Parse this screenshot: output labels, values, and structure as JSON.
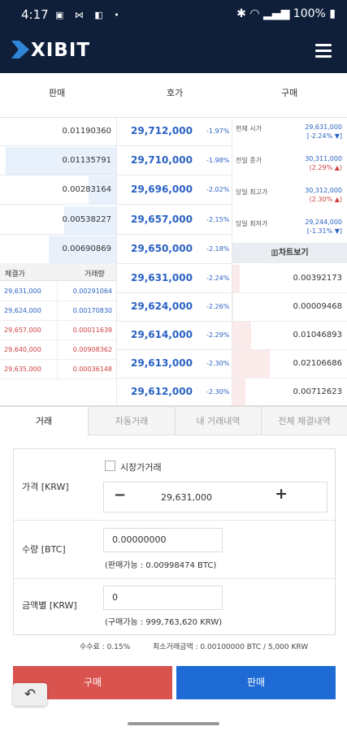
{
  "status_bar": {
    "time": "4:17",
    "battery": "100%"
  },
  "app": {
    "brand": "XIBIT"
  },
  "orderbook": {
    "headers": {
      "sell": "판매",
      "quote": "호가",
      "buy": "구매"
    },
    "asks": [
      {
        "qty": "0.01190360",
        "price": "29,712,000",
        "change": "-1.97%",
        "fill": 0.0
      },
      {
        "qty": "0.01135791",
        "price": "29,710,000",
        "change": "-1.98%",
        "fill": 0.95
      },
      {
        "qty": "0.00283164",
        "price": "29,696,000",
        "change": "-2.02%",
        "fill": 0.24
      },
      {
        "qty": "0.00538227",
        "price": "29,657,000",
        "change": "-2.15%",
        "fill": 0.45
      },
      {
        "qty": "0.00690869",
        "price": "29,650,000",
        "change": "-2.18%",
        "fill": 0.58
      }
    ],
    "bids": [
      {
        "price": "29,631,000",
        "change": "-2.24%",
        "qty": "0.00392173",
        "fill": 0.19
      },
      {
        "price": "29,624,000",
        "change": "-2.26%",
        "qty": "0.00009468",
        "fill": 0.01
      },
      {
        "price": "29,614,000",
        "change": "-2.29%",
        "qty": "0.01046893",
        "fill": 0.5
      },
      {
        "price": "29,613,000",
        "change": "-2.30%",
        "qty": "0.02106686",
        "fill": 1.0
      },
      {
        "price": "29,612,000",
        "change": "-2.30%",
        "qty": "0.00712623",
        "fill": 0.34
      }
    ],
    "info": [
      {
        "label": "현재 시가",
        "value": "29,631,000",
        "pct": "[-2.24% ▼]",
        "dir": "down"
      },
      {
        "label": "전일 종가",
        "value": "30,311,000",
        "pct": "(2.29% ▲)",
        "dir": "up"
      },
      {
        "label": "당일 최고가",
        "value": "30,312,000",
        "pct": "(2.30% ▲)",
        "dir": "up"
      },
      {
        "label": "당일 최저가",
        "value": "29,244,000",
        "pct": "[-1.31% ▼]",
        "dir": "down"
      }
    ],
    "chart_button": "차트보기",
    "trades": {
      "header_price": "체결가",
      "header_amount": "거래량",
      "rows": [
        {
          "price": "29,631,000",
          "amount": "0.00291064",
          "dir": "down"
        },
        {
          "price": "29,624,000",
          "amount": "0.00170830",
          "dir": "down"
        },
        {
          "price": "29,657,000",
          "amount": "0.00011639",
          "dir": "up"
        },
        {
          "price": "29,640,000",
          "amount": "0.00908362",
          "dir": "up"
        },
        {
          "price": "29,635,000",
          "amount": "0.00036148",
          "dir": "up"
        }
      ]
    }
  },
  "tabs": [
    "거래",
    "자동거래",
    "내 거래내역",
    "전체 체결내역"
  ],
  "form": {
    "market_order_label": "시장가거래",
    "price_label": "가격 [KRW]",
    "price_value": "29,631,000",
    "qty_label": "수량 [BTC]",
    "qty_value": "0.00000000",
    "qty_hint": "(판매가능 : 0.00998474 BTC)",
    "amount_label": "금액별 [KRW]",
    "amount_value": "0",
    "amount_hint": "(구매가능 : 999,763,620 KRW)"
  },
  "fee_text": "수수료 : 0.15%",
  "min_text": "최소거래금액 : 0.00100000 BTC / 5,000 KRW",
  "buttons": {
    "buy": "구매",
    "sell": "판매"
  },
  "colors": {
    "navy": "#0f1f3a",
    "down": "#2a62c4",
    "up": "#d04040",
    "buy_btn": "#d9534f",
    "sell_btn": "#1e6bd6"
  }
}
